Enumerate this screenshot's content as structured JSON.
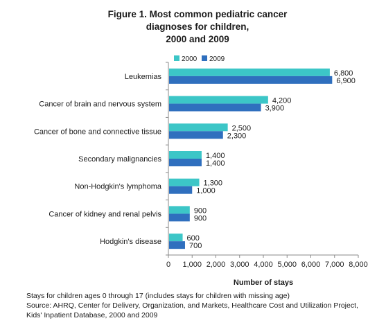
{
  "chart_data": {
    "type": "bar",
    "orientation": "horizontal",
    "title": "Figure 1. Most common pediatric cancer diagnoses for children, 2000 and 2009",
    "title_lines": [
      "Figure 1. Most common pediatric cancer",
      "diagnoses for children,",
      "2000 and 2009"
    ],
    "categories": [
      "Leukemias",
      "Cancer of brain and nervous system",
      "Cancer of bone and connective tissue",
      "Secondary malignancies",
      "Non-Hodgkin's lymphoma",
      "Cancer of kidney and renal pelvis",
      "Hodgkin's disease"
    ],
    "series": [
      {
        "name": "2000",
        "color": "#3cc6c7",
        "values": [
          6800,
          4200,
          2500,
          1400,
          1300,
          900,
          600
        ],
        "labels": [
          "6,800",
          "4,200",
          "2,500",
          "1,400",
          "1,300",
          "900",
          "600"
        ]
      },
      {
        "name": "2009",
        "color": "#2f6fbe",
        "values": [
          6900,
          3900,
          2300,
          1400,
          1000,
          900,
          700
        ],
        "labels": [
          "6,900",
          "3,900",
          "2,300",
          "1,400",
          "1,000",
          "900",
          "700"
        ]
      }
    ],
    "xlabel": "Number of stays",
    "ylabel": "",
    "xlim": [
      0,
      8000
    ],
    "xticks": [
      0,
      1000,
      2000,
      3000,
      4000,
      5000,
      6000,
      7000,
      8000
    ],
    "xtick_labels": [
      "0",
      "1,000",
      "2,000",
      "3,000",
      "4,000",
      "5,000",
      "6,000",
      "7,000",
      "8,000"
    ],
    "grid": false,
    "legend_position": "top-left"
  },
  "footnotes": [
    "Stays for children ages  0 through 17 (includes stays for children with missing age)",
    "Source: AHRQ, Center for Delivery, Organization, and Markets, Healthcare Cost and Utilization Project,",
    "Kids' Inpatient Database, 2000 and 2009"
  ]
}
